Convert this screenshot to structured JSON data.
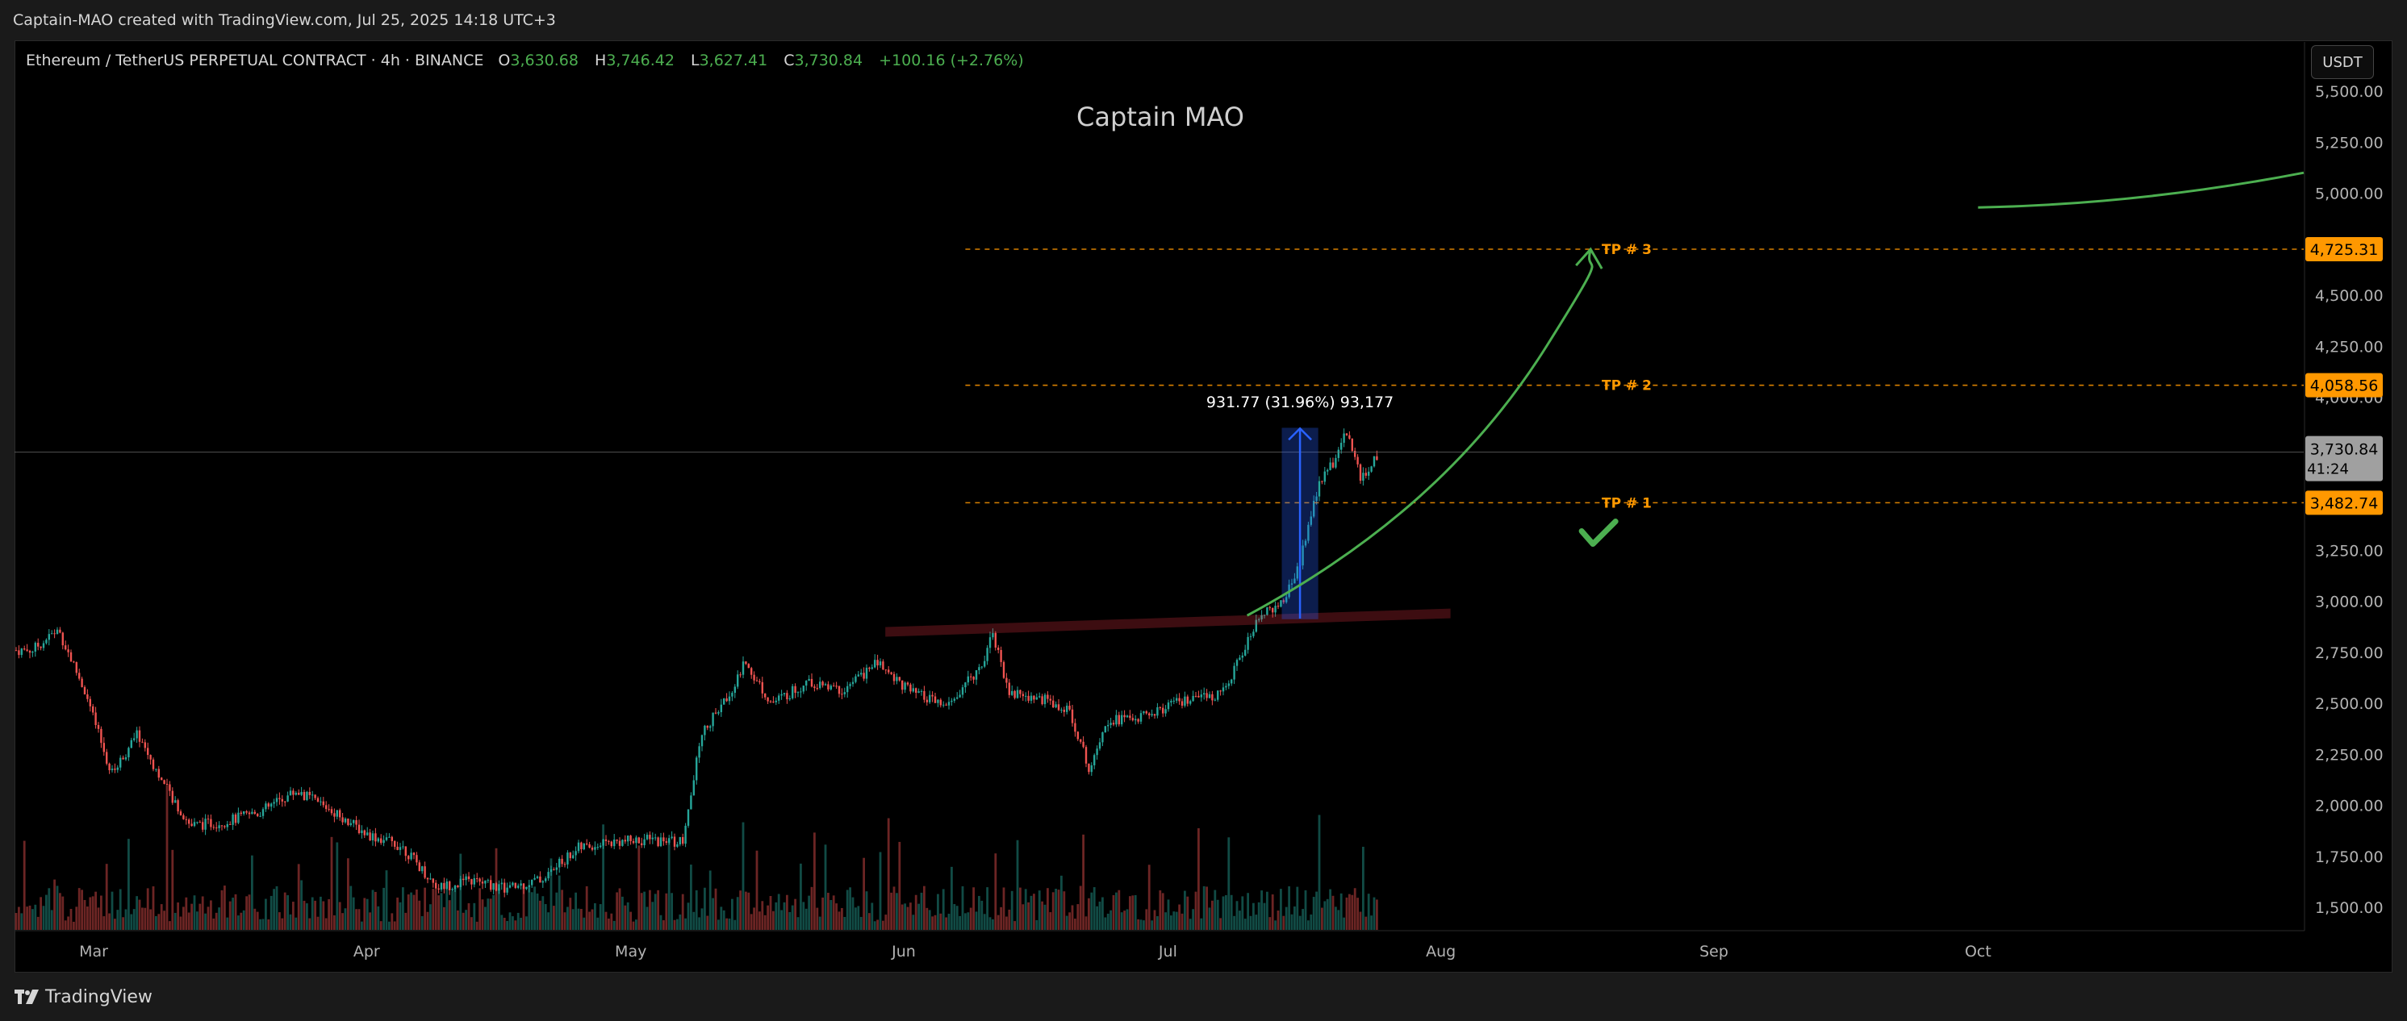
{
  "header": {
    "attribution": "Captain-MAO created with TradingView.com, Jul 25, 2025 14:18 UTC+3"
  },
  "footer": {
    "brand": "TradingView"
  },
  "legend": {
    "symbol": "Ethereum / TetherUS PERPETUAL CONTRACT · 4h · BINANCE",
    "o_label": "O",
    "o_value": "3,630.68",
    "h_label": "H",
    "h_value": "3,746.42",
    "l_label": "L",
    "l_value": "3,627.41",
    "c_label": "C",
    "c_value": "3,730.84",
    "change": "+100.16 (+2.76%)"
  },
  "watermark": "Captain MAO",
  "currency": "USDT",
  "colors": {
    "up": "#26a69a",
    "down": "#ef5350",
    "bull_green": "#4caf50",
    "target_orange": "#ff9800",
    "measure_blue": "#2962ff",
    "trend_red": "#f23645"
  },
  "chart_data": {
    "type": "candlestick",
    "timeframe": "4h",
    "x_axis": {
      "ticks": [
        "Mar",
        "Apr",
        "May",
        "Jun",
        "Jul",
        "Aug",
        "Sep",
        "Oct"
      ]
    },
    "y_axis": {
      "range": [
        1400,
        5600
      ],
      "ticks": [
        "1,500.00",
        "1,750.00",
        "2,000.00",
        "2,250.00",
        "2,500.00",
        "2,750.00",
        "3,000.00",
        "3,250.00",
        "3,500.00",
        "3,750.00",
        "4,000.00",
        "4,250.00",
        "4,500.00",
        "4,750.00",
        "5,000.00",
        "5,250.00",
        "5,500.00"
      ]
    },
    "price_path": [
      {
        "date": "2025-02-22",
        "price": 2760
      },
      {
        "date": "2025-02-25",
        "price": 2860
      },
      {
        "date": "2025-02-28",
        "price": 2560
      },
      {
        "date": "2025-03-03",
        "price": 2150
      },
      {
        "date": "2025-03-06",
        "price": 2350
      },
      {
        "date": "2025-03-09",
        "price": 2100
      },
      {
        "date": "2025-03-12",
        "price": 1900
      },
      {
        "date": "2025-03-16",
        "price": 1920
      },
      {
        "date": "2025-03-20",
        "price": 1970
      },
      {
        "date": "2025-03-24",
        "price": 2070
      },
      {
        "date": "2025-03-28",
        "price": 1980
      },
      {
        "date": "2025-04-01",
        "price": 1860
      },
      {
        "date": "2025-04-05",
        "price": 1800
      },
      {
        "date": "2025-04-09",
        "price": 1600
      },
      {
        "date": "2025-04-13",
        "price": 1630
      },
      {
        "date": "2025-04-17",
        "price": 1590
      },
      {
        "date": "2025-04-21",
        "price": 1640
      },
      {
        "date": "2025-04-25",
        "price": 1790
      },
      {
        "date": "2025-04-29",
        "price": 1820
      },
      {
        "date": "2025-05-03",
        "price": 1830
      },
      {
        "date": "2025-05-07",
        "price": 1820
      },
      {
        "date": "2025-05-09",
        "price": 2350
      },
      {
        "date": "2025-05-12",
        "price": 2530
      },
      {
        "date": "2025-05-14",
        "price": 2700
      },
      {
        "date": "2025-05-17",
        "price": 2500
      },
      {
        "date": "2025-05-21",
        "price": 2600
      },
      {
        "date": "2025-05-25",
        "price": 2560
      },
      {
        "date": "2025-05-29",
        "price": 2700
      },
      {
        "date": "2025-06-02",
        "price": 2550
      },
      {
        "date": "2025-06-06",
        "price": 2480
      },
      {
        "date": "2025-06-10",
        "price": 2700
      },
      {
        "date": "2025-06-11",
        "price": 2860
      },
      {
        "date": "2025-06-13",
        "price": 2550
      },
      {
        "date": "2025-06-17",
        "price": 2520
      },
      {
        "date": "2025-06-20",
        "price": 2450
      },
      {
        "date": "2025-06-22",
        "price": 2180
      },
      {
        "date": "2025-06-24",
        "price": 2420
      },
      {
        "date": "2025-06-28",
        "price": 2430
      },
      {
        "date": "2025-07-02",
        "price": 2500
      },
      {
        "date": "2025-07-06",
        "price": 2530
      },
      {
        "date": "2025-07-08",
        "price": 2610
      },
      {
        "date": "2025-07-10",
        "price": 2800
      },
      {
        "date": "2025-07-12",
        "price": 2960
      },
      {
        "date": "2025-07-14",
        "price": 2980
      },
      {
        "date": "2025-07-16",
        "price": 3200
      },
      {
        "date": "2025-07-18",
        "price": 3550
      },
      {
        "date": "2025-07-20",
        "price": 3700
      },
      {
        "date": "2025-07-21",
        "price": 3850
      },
      {
        "date": "2025-07-23",
        "price": 3600
      },
      {
        "date": "2025-07-25",
        "price": 3730
      }
    ],
    "last_price": "3,730.84",
    "countdown": "41:24",
    "levels": [
      {
        "label": "TP # 1",
        "price": 3482.74,
        "price_text": "3,482.74"
      },
      {
        "label": "TP # 2",
        "price": 4058.56,
        "price_text": "4,058.56"
      },
      {
        "label": "TP # 3",
        "price": 4725.31,
        "price_text": "4,725.31"
      }
    ],
    "levels_start_date": "2025-06-08",
    "measure": {
      "label": "931.77 (31.96%) 93,177",
      "date_start": "2025-07-14",
      "date_end": "2025-07-18",
      "price_from": 2915,
      "price_to": 3847
    },
    "trendline": {
      "start_date": "2025-05-30",
      "start_price": 2850,
      "end_date": "2025-08-02",
      "end_price": 2940
    },
    "projection_curve": {
      "points": [
        {
          "date": "2025-07-10",
          "price": 2930
        },
        {
          "date": "2025-07-25",
          "price": 3280
        },
        {
          "date": "2025-08-05",
          "price": 3700
        },
        {
          "date": "2025-08-13",
          "price": 4250
        },
        {
          "date": "2025-08-18",
          "price": 4725
        }
      ]
    },
    "long_term_curve": {
      "start_date": "2025-10-01",
      "start_price": 4930,
      "end_date": "2025-11-05",
      "end_price": 5100
    },
    "check_mark_date": "2025-08-19",
    "check_mark_price": 3320
  }
}
